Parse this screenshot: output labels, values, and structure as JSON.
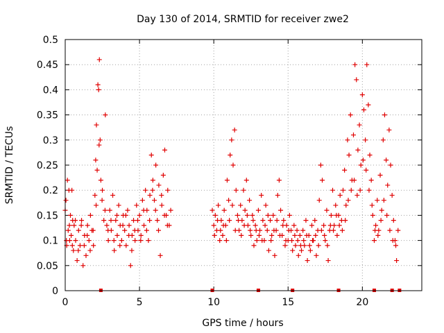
{
  "chart_data": {
    "type": "scatter",
    "title": "Day 130 of 2014, SRMTID for receiver zwe2",
    "xlabel": "GPS time / hours",
    "ylabel": "SRMTID / TECUs",
    "xlim": [
      0,
      24
    ],
    "ylim": [
      0,
      0.5
    ],
    "xticks": [
      0,
      5,
      10,
      15,
      20
    ],
    "yticks": [
      0,
      0.05,
      0.1,
      0.15,
      0.2,
      0.25,
      0.3,
      0.35,
      0.4,
      0.45,
      0.5
    ],
    "grid": true,
    "marker": "+",
    "color": "#e00000",
    "series": [
      {
        "name": "SRMTID",
        "points": [
          [
            0.0,
            0.16
          ],
          [
            0.05,
            0.18
          ],
          [
            0.1,
            0.09
          ],
          [
            0.15,
            0.22
          ],
          [
            0.2,
            0.12
          ],
          [
            0.25,
            0.2
          ],
          [
            0.3,
            0.1
          ],
          [
            0.35,
            0.15
          ],
          [
            0.4,
            0.11
          ],
          [
            0.45,
            0.2
          ],
          [
            0.5,
            0.14
          ],
          [
            0.55,
            0.08
          ],
          [
            0.6,
            0.13
          ],
          [
            0.7,
            0.1
          ],
          [
            0.8,
            0.06
          ],
          [
            0.9,
            0.12
          ],
          [
            1.0,
            0.09
          ],
          [
            1.1,
            0.14
          ],
          [
            1.2,
            0.05
          ],
          [
            1.3,
            0.11
          ],
          [
            1.4,
            0.07
          ],
          [
            1.5,
            0.13
          ],
          [
            1.6,
            0.1
          ],
          [
            1.7,
            0.15
          ],
          [
            1.8,
            0.12
          ],
          [
            1.9,
            0.09
          ],
          [
            2.0,
            0.19
          ],
          [
            2.05,
            0.26
          ],
          [
            2.1,
            0.33
          ],
          [
            2.15,
            0.24
          ],
          [
            2.2,
            0.41
          ],
          [
            2.25,
            0.4
          ],
          [
            2.3,
            0.46
          ],
          [
            2.35,
            0.3
          ],
          [
            2.4,
            0.22
          ],
          [
            2.5,
            0.2
          ],
          [
            2.6,
            0.14
          ],
          [
            2.7,
            0.35
          ],
          [
            2.8,
            0.13
          ],
          [
            2.9,
            0.1
          ],
          [
            3.0,
            0.16
          ],
          [
            3.1,
            0.12
          ],
          [
            3.2,
            0.19
          ],
          [
            3.3,
            0.08
          ],
          [
            3.4,
            0.14
          ],
          [
            3.5,
            0.11
          ],
          [
            3.6,
            0.17
          ],
          [
            3.7,
            0.13
          ],
          [
            3.8,
            0.1
          ],
          [
            3.9,
            0.15
          ],
          [
            4.0,
            0.12
          ],
          [
            4.1,
            0.09
          ],
          [
            4.2,
            0.16
          ],
          [
            4.3,
            0.13
          ],
          [
            4.4,
            0.05
          ],
          [
            4.5,
            0.11
          ],
          [
            4.6,
            0.14
          ],
          [
            4.7,
            0.1
          ],
          [
            4.8,
            0.17
          ],
          [
            4.9,
            0.12
          ],
          [
            5.0,
            0.15
          ],
          [
            5.1,
            0.11
          ],
          [
            5.2,
            0.18
          ],
          [
            5.3,
            0.13
          ],
          [
            5.4,
            0.2
          ],
          [
            5.5,
            0.16
          ],
          [
            5.6,
            0.1
          ],
          [
            5.7,
            0.19
          ],
          [
            5.8,
            0.27
          ],
          [
            5.9,
            0.22
          ],
          [
            6.0,
            0.18
          ],
          [
            6.1,
            0.25
          ],
          [
            6.2,
            0.14
          ],
          [
            6.3,
            0.21
          ],
          [
            6.4,
            0.07
          ],
          [
            6.5,
            0.17
          ],
          [
            6.6,
            0.23
          ],
          [
            6.7,
            0.28
          ],
          [
            6.8,
            0.15
          ],
          [
            6.9,
            0.2
          ],
          [
            7.0,
            0.13
          ],
          [
            7.1,
            0.16
          ],
          [
            0.08,
            0.1
          ],
          [
            0.28,
            0.13
          ],
          [
            0.48,
            0.09
          ],
          [
            0.68,
            0.14
          ],
          [
            0.88,
            0.08
          ],
          [
            1.08,
            0.13
          ],
          [
            1.28,
            0.09
          ],
          [
            1.48,
            0.11
          ],
          [
            1.68,
            0.08
          ],
          [
            1.88,
            0.12
          ],
          [
            2.08,
            0.17
          ],
          [
            2.28,
            0.29
          ],
          [
            2.48,
            0.18
          ],
          [
            2.68,
            0.16
          ],
          [
            2.88,
            0.12
          ],
          [
            3.08,
            0.14
          ],
          [
            3.28,
            0.1
          ],
          [
            3.48,
            0.15
          ],
          [
            3.68,
            0.09
          ],
          [
            3.88,
            0.13
          ],
          [
            4.08,
            0.15
          ],
          [
            4.28,
            0.11
          ],
          [
            4.48,
            0.08
          ],
          [
            4.68,
            0.12
          ],
          [
            4.88,
            0.14
          ],
          [
            5.08,
            0.1
          ],
          [
            5.28,
            0.16
          ],
          [
            5.48,
            0.12
          ],
          [
            5.68,
            0.14
          ],
          [
            5.88,
            0.2
          ],
          [
            6.08,
            0.16
          ],
          [
            6.28,
            0.12
          ],
          [
            6.48,
            0.19
          ],
          [
            6.68,
            0.15
          ],
          [
            6.88,
            0.13
          ],
          [
            9.9,
            0.16
          ],
          [
            10.0,
            0.13
          ],
          [
            10.1,
            0.15
          ],
          [
            10.2,
            0.12
          ],
          [
            10.3,
            0.17
          ],
          [
            10.4,
            0.1
          ],
          [
            10.5,
            0.14
          ],
          [
            10.6,
            0.11
          ],
          [
            10.7,
            0.16
          ],
          [
            10.8,
            0.13
          ],
          [
            10.9,
            0.22
          ],
          [
            11.0,
            0.18
          ],
          [
            11.1,
            0.27
          ],
          [
            11.2,
            0.3
          ],
          [
            11.3,
            0.25
          ],
          [
            11.4,
            0.32
          ],
          [
            11.5,
            0.2
          ],
          [
            11.6,
            0.15
          ],
          [
            11.7,
            0.12
          ],
          [
            11.8,
            0.17
          ],
          [
            11.9,
            0.14
          ],
          [
            12.0,
            0.2
          ],
          [
            12.1,
            0.16
          ],
          [
            12.2,
            0.22
          ],
          [
            12.3,
            0.13
          ],
          [
            12.4,
            0.18
          ],
          [
            12.5,
            0.11
          ],
          [
            12.6,
            0.15
          ],
          [
            12.7,
            0.09
          ],
          [
            12.8,
            0.13
          ],
          [
            12.9,
            0.1
          ],
          [
            13.0,
            0.16
          ],
          [
            13.1,
            0.12
          ],
          [
            13.2,
            0.19
          ],
          [
            13.3,
            0.14
          ],
          [
            13.4,
            0.1
          ],
          [
            13.5,
            0.17
          ],
          [
            13.6,
            0.12
          ],
          [
            13.7,
            0.08
          ],
          [
            13.8,
            0.14
          ],
          [
            13.9,
            0.11
          ],
          [
            14.0,
            0.15
          ],
          [
            14.1,
            0.07
          ],
          [
            14.2,
            0.12
          ],
          [
            14.3,
            0.19
          ],
          [
            14.4,
            0.22
          ],
          [
            14.5,
            0.16
          ],
          [
            14.6,
            0.11
          ],
          [
            14.7,
            0.14
          ],
          [
            14.8,
            0.09
          ],
          [
            14.9,
            0.13
          ],
          [
            15.0,
            0.1
          ],
          [
            15.1,
            0.15
          ],
          [
            15.2,
            0.12
          ],
          [
            15.3,
            0.08
          ],
          [
            15.4,
            0.13
          ],
          [
            15.5,
            0.09
          ],
          [
            15.6,
            0.12
          ],
          [
            15.7,
            0.07
          ],
          [
            15.8,
            0.11
          ],
          [
            15.9,
            0.08
          ],
          [
            16.0,
            0.12
          ],
          [
            16.1,
            0.09
          ],
          [
            16.2,
            0.14
          ],
          [
            16.3,
            0.06
          ],
          [
            16.4,
            0.11
          ],
          [
            16.5,
            0.08
          ],
          [
            16.6,
            0.13
          ],
          [
            16.7,
            0.1
          ],
          [
            16.8,
            0.14
          ],
          [
            16.9,
            0.07
          ],
          [
            17.0,
            0.12
          ],
          [
            17.1,
            0.18
          ],
          [
            17.2,
            0.25
          ],
          [
            17.3,
            0.22
          ],
          [
            17.4,
            0.13
          ],
          [
            17.5,
            0.1
          ],
          [
            17.6,
            0.16
          ],
          [
            17.7,
            0.06
          ],
          [
            17.8,
            0.12
          ],
          [
            17.9,
            0.15
          ],
          [
            18.0,
            0.2
          ],
          [
            18.1,
            0.13
          ],
          [
            18.2,
            0.17
          ],
          [
            18.3,
            0.11
          ],
          [
            18.4,
            0.15
          ],
          [
            18.5,
            0.19
          ],
          [
            18.6,
            0.14
          ],
          [
            18.7,
            0.2
          ],
          [
            18.8,
            0.24
          ],
          [
            18.9,
            0.17
          ],
          [
            19.0,
            0.3
          ],
          [
            19.1,
            0.27
          ],
          [
            19.2,
            0.35
          ],
          [
            19.3,
            0.22
          ],
          [
            19.4,
            0.31
          ],
          [
            19.5,
            0.45
          ],
          [
            19.6,
            0.42
          ],
          [
            19.7,
            0.28
          ],
          [
            19.8,
            0.33
          ],
          [
            19.9,
            0.25
          ],
          [
            20.0,
            0.39
          ],
          [
            20.1,
            0.36
          ],
          [
            20.2,
            0.3
          ],
          [
            20.3,
            0.45
          ],
          [
            20.4,
            0.37
          ],
          [
            20.5,
            0.27
          ],
          [
            20.6,
            0.22
          ],
          [
            20.7,
            0.15
          ],
          [
            20.8,
            0.1
          ],
          [
            20.9,
            0.13
          ],
          [
            21.0,
            0.18
          ],
          [
            21.1,
            0.12
          ],
          [
            21.2,
            0.23
          ],
          [
            21.3,
            0.16
          ],
          [
            21.4,
            0.3
          ],
          [
            21.5,
            0.35
          ],
          [
            21.6,
            0.26
          ],
          [
            21.7,
            0.21
          ],
          [
            21.8,
            0.32
          ],
          [
            21.9,
            0.25
          ],
          [
            22.0,
            0.19
          ],
          [
            22.1,
            0.14
          ],
          [
            22.2,
            0.1
          ],
          [
            22.3,
            0.06
          ],
          [
            22.4,
            0.12
          ],
          [
            10.05,
            0.11
          ],
          [
            10.25,
            0.14
          ],
          [
            10.45,
            0.12
          ],
          [
            10.65,
            0.13
          ],
          [
            10.85,
            0.1
          ],
          [
            11.05,
            0.14
          ],
          [
            11.25,
            0.17
          ],
          [
            11.45,
            0.12
          ],
          [
            11.65,
            0.14
          ],
          [
            11.85,
            0.11
          ],
          [
            12.05,
            0.13
          ],
          [
            12.25,
            0.15
          ],
          [
            12.45,
            0.12
          ],
          [
            12.65,
            0.14
          ],
          [
            12.85,
            0.12
          ],
          [
            13.05,
            0.11
          ],
          [
            13.25,
            0.1
          ],
          [
            13.45,
            0.13
          ],
          [
            13.65,
            0.15
          ],
          [
            13.85,
            0.1
          ],
          [
            14.05,
            0.12
          ],
          [
            14.25,
            0.14
          ],
          [
            14.45,
            0.11
          ],
          [
            14.65,
            0.13
          ],
          [
            14.85,
            0.1
          ],
          [
            15.05,
            0.12
          ],
          [
            15.25,
            0.1
          ],
          [
            15.45,
            0.11
          ],
          [
            15.65,
            0.1
          ],
          [
            15.85,
            0.09
          ],
          [
            16.05,
            0.1
          ],
          [
            16.25,
            0.11
          ],
          [
            16.45,
            0.09
          ],
          [
            16.65,
            0.1
          ],
          [
            16.85,
            0.11
          ],
          [
            17.05,
            0.09
          ],
          [
            17.25,
            0.12
          ],
          [
            17.45,
            0.11
          ],
          [
            17.65,
            0.09
          ],
          [
            17.85,
            0.13
          ],
          [
            18.05,
            0.12
          ],
          [
            18.25,
            0.15
          ],
          [
            18.45,
            0.13
          ],
          [
            18.65,
            0.12
          ],
          [
            18.85,
            0.14
          ],
          [
            19.05,
            0.18
          ],
          [
            19.25,
            0.2
          ],
          [
            19.45,
            0.22
          ],
          [
            19.65,
            0.19
          ],
          [
            19.85,
            0.2
          ],
          [
            20.05,
            0.26
          ],
          [
            20.25,
            0.24
          ],
          [
            20.45,
            0.2
          ],
          [
            20.65,
            0.17
          ],
          [
            20.85,
            0.12
          ],
          [
            21.05,
            0.11
          ],
          [
            21.25,
            0.14
          ],
          [
            21.45,
            0.18
          ],
          [
            21.65,
            0.15
          ],
          [
            21.85,
            0.12
          ],
          [
            22.05,
            0.1
          ],
          [
            22.25,
            0.09
          ]
        ]
      }
    ],
    "baseline_markers": [
      2.4,
      9.9,
      13.0,
      15.3,
      18.4,
      20.8,
      22.0,
      22.5
    ]
  }
}
